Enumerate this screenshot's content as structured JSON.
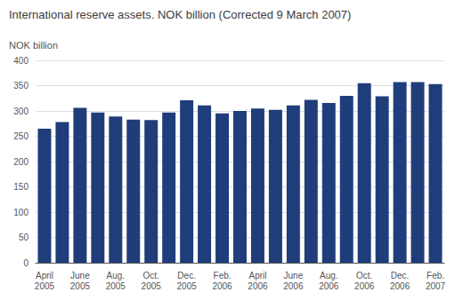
{
  "chart_data": {
    "type": "bar",
    "title": "International reserve assets. NOK billion (Corrected 9 March 2007)",
    "y_label": "NOK billion",
    "categories": [
      "April\n2005",
      null,
      "June\n2005",
      null,
      "Aug.\n2005",
      null,
      "Oct.\n2005",
      null,
      "Dec.\n2005",
      null,
      "Feb.\n2006",
      null,
      "April\n2006",
      null,
      "June\n2006",
      null,
      "Aug.\n2006",
      null,
      "Oct.\n2006",
      null,
      "Dec.\n2006",
      null,
      "Feb.\n2007"
    ],
    "values": [
      265,
      278,
      306,
      297,
      289,
      283,
      282,
      297,
      321,
      311,
      295,
      300,
      305,
      302,
      311,
      322,
      316,
      330,
      355,
      329,
      357,
      357,
      353
    ],
    "color": "#1f3d7a",
    "ylim": [
      0,
      400
    ],
    "yticks": [
      0,
      50,
      100,
      150,
      200,
      250,
      300,
      350,
      400
    ],
    "grid": true
  }
}
